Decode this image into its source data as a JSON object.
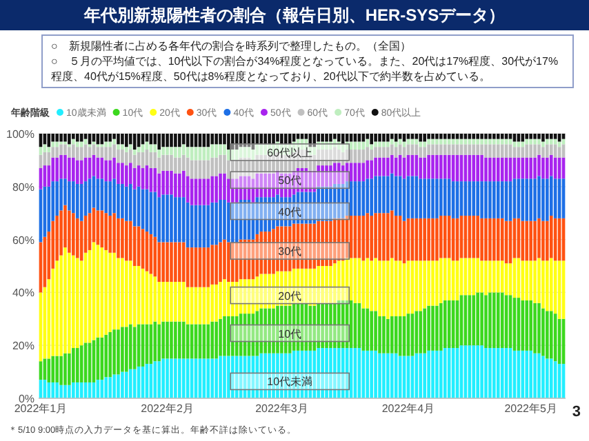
{
  "chart_data": {
    "type": "bar",
    "stacked": true,
    "title": "年代別新規陽性者の割合（報告日別、HER-SYSデータ）",
    "subtitle": "○　新規陽性者に占める各年代の割合を時系列で整理したもの。（全国）",
    "legend_title": "年齢階級",
    "legend": "top left",
    "grid": "y",
    "xlim": [
      "2021-12-31T12:00",
      "2022-05-09T12:00"
    ],
    "xticks": [
      {
        "value": "2022-01-01",
        "label": "2022年1月"
      },
      {
        "value": "2022-02-01",
        "label": "2022年2月"
      },
      {
        "value": "2022-03-01",
        "label": "2022年3月"
      },
      {
        "value": "2022-04-01",
        "label": "2022年4月"
      },
      {
        "value": "2022-05-01",
        "label": "2022年5月"
      }
    ],
    "ylim": [
      0,
      100
    ],
    "yticks": [
      {
        "value": 0,
        "label": "0%"
      },
      {
        "value": 20,
        "label": "20%"
      },
      {
        "value": 40,
        "label": "40%"
      },
      {
        "value": 60,
        "label": "60%"
      },
      {
        "value": 80,
        "label": "80%"
      },
      {
        "value": 100,
        "label": "100%"
      }
    ],
    "x": [
      "2022-01-01",
      "2022-01-02",
      "2022-01-03",
      "2022-01-04",
      "2022-01-05",
      "2022-01-06",
      "2022-01-07",
      "2022-01-08",
      "2022-01-09",
      "2022-01-10",
      "2022-01-11",
      "2022-01-12",
      "2022-01-13",
      "2022-01-14",
      "2022-01-15",
      "2022-01-16",
      "2022-01-17",
      "2022-01-18",
      "2022-01-19",
      "2022-01-20",
      "2022-01-21",
      "2022-01-22",
      "2022-01-23",
      "2022-01-24",
      "2022-01-25",
      "2022-01-26",
      "2022-01-27",
      "2022-01-28",
      "2022-01-29",
      "2022-01-30",
      "2022-01-31",
      "2022-02-01",
      "2022-02-02",
      "2022-02-03",
      "2022-02-04",
      "2022-02-05",
      "2022-02-06",
      "2022-02-07",
      "2022-02-08",
      "2022-02-09",
      "2022-02-10",
      "2022-02-11",
      "2022-02-12",
      "2022-02-13",
      "2022-02-14",
      "2022-02-15",
      "2022-02-16",
      "2022-02-17",
      "2022-02-18",
      "2022-02-19",
      "2022-02-20",
      "2022-02-21",
      "2022-02-22",
      "2022-02-23",
      "2022-02-24",
      "2022-02-25",
      "2022-02-26",
      "2022-02-27",
      "2022-02-28",
      "2022-03-01",
      "2022-03-02",
      "2022-03-03",
      "2022-03-04",
      "2022-03-05",
      "2022-03-06",
      "2022-03-07",
      "2022-03-08",
      "2022-03-09",
      "2022-03-10",
      "2022-03-11",
      "2022-03-12",
      "2022-03-13",
      "2022-03-14",
      "2022-03-15",
      "2022-03-16",
      "2022-03-17",
      "2022-03-18",
      "2022-03-19",
      "2022-03-20",
      "2022-03-21",
      "2022-03-22",
      "2022-03-23",
      "2022-03-24",
      "2022-03-25",
      "2022-03-26",
      "2022-03-27",
      "2022-03-28",
      "2022-03-29",
      "2022-03-30",
      "2022-03-31",
      "2022-04-01",
      "2022-04-02",
      "2022-04-03",
      "2022-04-04",
      "2022-04-05",
      "2022-04-06",
      "2022-04-07",
      "2022-04-08",
      "2022-04-09",
      "2022-04-10",
      "2022-04-11",
      "2022-04-12",
      "2022-04-13",
      "2022-04-14",
      "2022-04-15",
      "2022-04-16",
      "2022-04-17",
      "2022-04-18",
      "2022-04-19",
      "2022-04-20",
      "2022-04-21",
      "2022-04-22",
      "2022-04-23",
      "2022-04-24",
      "2022-04-25",
      "2022-04-26",
      "2022-04-27",
      "2022-04-28",
      "2022-04-29",
      "2022-04-30",
      "2022-05-01",
      "2022-05-02",
      "2022-05-03",
      "2022-05-04",
      "2022-05-05",
      "2022-05-06",
      "2022-05-07",
      "2022-05-08",
      "2022-05-09"
    ],
    "series": [
      {
        "name": "10歳未満",
        "color": "#22eeff",
        "values": [
          7,
          7,
          6,
          6,
          6,
          5,
          5,
          5,
          6,
          6,
          6,
          6,
          6,
          6,
          7,
          7,
          8,
          8,
          9,
          9,
          10,
          10,
          11,
          11,
          12,
          12,
          13,
          13,
          14,
          14,
          15,
          15,
          15,
          15,
          15,
          15,
          15,
          15,
          15,
          15,
          15,
          15,
          15,
          15,
          16,
          16,
          16,
          16,
          16,
          16,
          16,
          16,
          16,
          16,
          17,
          17,
          17,
          17,
          17,
          17,
          17,
          17,
          18,
          18,
          18,
          18,
          18,
          18,
          19,
          19,
          19,
          19,
          19,
          19,
          19,
          19,
          19,
          19,
          19,
          18,
          18,
          18,
          18,
          17,
          17,
          17,
          17,
          17,
          16,
          16,
          16,
          16,
          17,
          17,
          17,
          18,
          18,
          18,
          18,
          19,
          19,
          19,
          19,
          20,
          20,
          20,
          20,
          20,
          20,
          19,
          19,
          19,
          19,
          19,
          19,
          19,
          18,
          18,
          18,
          18,
          18,
          17,
          17,
          16,
          15,
          15,
          14,
          13,
          13
        ]
      },
      {
        "name": "10代",
        "color": "#3cd81e",
        "values": [
          7,
          8,
          9,
          10,
          10,
          11,
          12,
          12,
          13,
          13,
          14,
          15,
          15,
          16,
          16,
          16,
          16,
          17,
          17,
          17,
          17,
          17,
          17,
          16,
          16,
          16,
          15,
          15,
          15,
          14,
          14,
          14,
          14,
          14,
          14,
          14,
          13,
          13,
          13,
          13,
          13,
          13,
          14,
          14,
          14,
          15,
          15,
          15,
          15,
          16,
          16,
          16,
          16,
          17,
          17,
          17,
          17,
          17,
          18,
          18,
          18,
          18,
          18,
          18,
          18,
          18,
          17,
          17,
          17,
          17,
          17,
          17,
          17,
          18,
          18,
          18,
          18,
          17,
          17,
          16,
          16,
          15,
          15,
          14,
          14,
          13,
          14,
          14,
          15,
          15,
          16,
          16,
          16,
          16,
          17,
          17,
          17,
          17,
          18,
          18,
          18,
          18,
          18,
          19,
          19,
          19,
          19,
          20,
          20,
          20,
          21,
          21,
          21,
          21,
          20,
          20,
          20,
          20,
          19,
          19,
          19,
          19,
          19,
          18,
          18,
          18,
          18,
          17,
          17
        ]
      },
      {
        "name": "20代",
        "color": "#ffff14",
        "values": [
          26,
          27,
          30,
          33,
          36,
          38,
          40,
          38,
          35,
          34,
          32,
          34,
          35,
          37,
          35,
          34,
          32,
          30,
          29,
          27,
          26,
          25,
          24,
          23,
          22,
          21,
          20,
          19,
          17,
          16,
          15,
          15,
          15,
          15,
          15,
          15,
          14,
          14,
          14,
          14,
          14,
          14,
          14,
          14,
          14,
          14,
          13,
          13,
          13,
          13,
          13,
          13,
          13,
          13,
          13,
          13,
          13,
          13,
          13,
          13,
          13,
          13,
          13,
          13,
          13,
          13,
          14,
          14,
          14,
          14,
          14,
          14,
          15,
          15,
          15,
          16,
          16,
          17,
          17,
          18,
          19,
          19,
          20,
          21,
          21,
          22,
          22,
          21,
          21,
          20,
          20,
          20,
          19,
          19,
          18,
          17,
          17,
          17,
          17,
          16,
          16,
          15,
          15,
          14,
          14,
          14,
          14,
          13,
          12,
          13,
          12,
          12,
          12,
          12,
          12,
          12,
          15,
          15,
          15,
          15,
          15,
          16,
          17,
          18,
          19,
          20,
          20,
          22,
          22
        ]
      },
      {
        "name": "30代",
        "color": "#ff5212",
        "values": [
          19,
          19,
          18,
          18,
          17,
          17,
          16,
          16,
          16,
          15,
          15,
          14,
          14,
          13,
          13,
          14,
          14,
          14,
          15,
          15,
          15,
          15,
          15,
          15,
          15,
          15,
          15,
          15,
          15,
          15,
          15,
          15,
          15,
          15,
          15,
          15,
          15,
          15,
          15,
          15,
          15,
          15,
          15,
          15,
          15,
          15,
          15,
          15,
          15,
          15,
          15,
          15,
          15,
          16,
          16,
          16,
          16,
          17,
          17,
          17,
          17,
          17,
          17,
          17,
          17,
          17,
          17,
          17,
          17,
          17,
          17,
          17,
          17,
          16,
          16,
          16,
          16,
          16,
          16,
          17,
          17,
          17,
          17,
          18,
          18,
          18,
          18,
          17,
          17,
          16,
          16,
          16,
          16,
          16,
          16,
          16,
          16,
          16,
          16,
          16,
          16,
          16,
          16,
          16,
          16,
          16,
          16,
          16,
          16,
          16,
          16,
          16,
          16,
          16,
          16,
          16,
          15,
          15,
          15,
          15,
          15,
          15,
          15,
          15,
          15,
          16,
          16,
          16,
          16
        ]
      },
      {
        "name": "40代",
        "color": "#1d6fe6",
        "values": [
          20,
          19,
          17,
          15,
          13,
          12,
          10,
          11,
          12,
          13,
          14,
          13,
          13,
          12,
          12,
          12,
          12,
          13,
          13,
          13,
          13,
          13,
          14,
          14,
          15,
          15,
          16,
          16,
          17,
          17,
          18,
          18,
          18,
          17,
          17,
          17,
          17,
          16,
          16,
          16,
          16,
          16,
          16,
          16,
          16,
          15,
          15,
          15,
          15,
          15,
          15,
          15,
          14,
          14,
          13,
          13,
          13,
          12,
          12,
          11,
          11,
          11,
          11,
          12,
          12,
          12,
          12,
          12,
          13,
          13,
          13,
          13,
          13,
          13,
          13,
          13,
          13,
          13,
          13,
          13,
          13,
          14,
          14,
          14,
          14,
          14,
          14,
          15,
          15,
          16,
          16,
          16,
          16,
          15,
          15,
          15,
          15,
          15,
          14,
          14,
          14,
          14,
          14,
          13,
          13,
          13,
          13,
          13,
          14,
          14,
          14,
          14,
          14,
          14,
          15,
          15,
          15,
          15,
          16,
          16,
          16,
          16,
          16,
          16,
          16,
          15,
          15,
          15,
          15
        ]
      },
      {
        "name": "50代",
        "color": "#a824ee",
        "values": [
          8,
          8,
          8,
          9,
          9,
          9,
          9,
          9,
          9,
          9,
          9,
          9,
          8,
          8,
          8,
          8,
          8,
          8,
          8,
          8,
          8,
          8,
          8,
          8,
          8,
          8,
          9,
          9,
          9,
          9,
          9,
          9,
          9,
          9,
          9,
          10,
          10,
          10,
          10,
          10,
          10,
          10,
          10,
          10,
          10,
          10,
          9,
          9,
          9,
          9,
          9,
          9,
          9,
          9,
          9,
          9,
          9,
          9,
          9,
          9,
          9,
          9,
          9,
          9,
          9,
          9,
          8,
          8,
          8,
          8,
          8,
          8,
          8,
          8,
          7,
          7,
          7,
          7,
          7,
          7,
          7,
          7,
          7,
          7,
          7,
          7,
          7,
          7,
          8,
          8,
          8,
          8,
          8,
          8,
          8,
          9,
          9,
          9,
          9,
          9,
          9,
          10,
          10,
          10,
          10,
          10,
          10,
          10,
          10,
          9,
          9,
          9,
          9,
          9,
          9,
          9,
          8,
          8,
          8,
          8,
          8,
          8,
          8,
          8,
          8,
          8,
          8,
          8,
          8
        ]
      },
      {
        "name": "60代",
        "color": "#c0c0c0",
        "values": [
          5,
          5,
          5,
          4,
          4,
          4,
          4,
          4,
          5,
          5,
          5,
          5,
          4,
          4,
          4,
          4,
          5,
          5,
          5,
          5,
          5,
          5,
          5,
          5,
          5,
          6,
          6,
          6,
          6,
          6,
          6,
          6,
          6,
          6,
          6,
          6,
          7,
          7,
          7,
          7,
          7,
          7,
          7,
          7,
          7,
          7,
          7,
          7,
          7,
          7,
          7,
          7,
          7,
          7,
          7,
          7,
          7,
          7,
          7,
          7,
          7,
          7,
          7,
          7,
          7,
          7,
          6,
          6,
          6,
          6,
          6,
          6,
          6,
          5,
          5,
          5,
          5,
          5,
          5,
          5,
          5,
          4,
          4,
          4,
          4,
          4,
          4,
          4,
          4,
          4,
          4,
          4,
          4,
          4,
          4,
          4,
          4,
          4,
          4,
          4,
          4,
          4,
          4,
          4,
          4,
          4,
          4,
          4,
          4,
          5,
          5,
          5,
          5,
          5,
          5,
          5,
          4,
          4,
          4,
          5,
          5,
          5,
          4,
          4,
          5,
          4,
          5,
          4,
          5
        ]
      },
      {
        "name": "70代",
        "color": "#bfeebf",
        "values": [
          3,
          3,
          2,
          2,
          2,
          1,
          1,
          1,
          2,
          2,
          2,
          2,
          1,
          1,
          1,
          1,
          2,
          2,
          2,
          2,
          2,
          2,
          2,
          2,
          2,
          3,
          3,
          3,
          3,
          3,
          3,
          3,
          3,
          4,
          4,
          4,
          4,
          5,
          5,
          5,
          5,
          5,
          5,
          5,
          4,
          4,
          4,
          4,
          4,
          4,
          4,
          4,
          4,
          4,
          4,
          4,
          4,
          4,
          4,
          4,
          4,
          4,
          4,
          4,
          4,
          4,
          3,
          3,
          3,
          3,
          3,
          3,
          3,
          3,
          3,
          3,
          3,
          3,
          3,
          3,
          3,
          2,
          2,
          2,
          2,
          2,
          2,
          2,
          2,
          2,
          2,
          2,
          2,
          2,
          2,
          2,
          2,
          2,
          2,
          2,
          2,
          2,
          2,
          2,
          2,
          2,
          2,
          2,
          2,
          2,
          2,
          2,
          2,
          2,
          2,
          2,
          2,
          2,
          2,
          2,
          2,
          2,
          2,
          2,
          2,
          2,
          2,
          2,
          2
        ]
      },
      {
        "name": "80代以上",
        "color": "#111111",
        "values": [
          5,
          4,
          5,
          3,
          3,
          3,
          3,
          4,
          2,
          3,
          3,
          2,
          4,
          3,
          4,
          4,
          3,
          3,
          2,
          4,
          4,
          5,
          4,
          6,
          5,
          4,
          3,
          4,
          4,
          6,
          5,
          5,
          5,
          5,
          5,
          4,
          5,
          5,
          5,
          5,
          5,
          5,
          4,
          4,
          4,
          4,
          6,
          6,
          6,
          5,
          5,
          5,
          6,
          4,
          4,
          4,
          4,
          4,
          3,
          4,
          4,
          4,
          3,
          2,
          2,
          2,
          5,
          5,
          3,
          3,
          3,
          3,
          2,
          3,
          4,
          3,
          3,
          3,
          3,
          3,
          2,
          4,
          3,
          3,
          3,
          3,
          2,
          3,
          2,
          3,
          2,
          2,
          2,
          3,
          3,
          2,
          2,
          2,
          2,
          2,
          2,
          2,
          2,
          2,
          2,
          2,
          2,
          2,
          2,
          2,
          2,
          2,
          2,
          2,
          2,
          2,
          3,
          3,
          3,
          2,
          2,
          2,
          2,
          3,
          2,
          2,
          2,
          3,
          2
        ]
      }
    ],
    "annotations": [
      "○　５月の平均値では、10代以下の割合が34%程度となっている。また、20代は17%程度、30代が17%程度、40代が15%程度、50代は8%程度となっており、20代以下で約半数を占めている。",
      "＊5/10 9:00時点の入力データを基に算出。年齢不詳は除いている。",
      "3",
      {
        "text": "60代以上",
        "x": "2022-03-03",
        "y": 93
      },
      {
        "text": "50代",
        "x": "2022-03-03",
        "y": 82.5
      },
      {
        "text": "40代",
        "x": "2022-03-03",
        "y": 70.7
      },
      {
        "text": "30代",
        "x": "2022-03-03",
        "y": 55.7
      },
      {
        "text": "20代",
        "x": "2022-03-03",
        "y": 38.9
      },
      {
        "text": "10代",
        "x": "2022-03-03",
        "y": 24.6
      },
      {
        "text": "10代未満",
        "x": "2022-03-03",
        "y": 6.4
      }
    ]
  }
}
